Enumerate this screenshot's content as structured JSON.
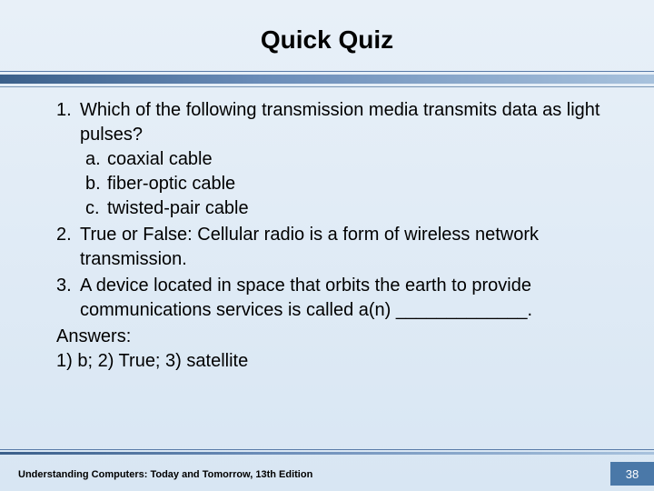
{
  "colors": {
    "background_top": "#e8f0f8",
    "background_bottom": "#d8e6f3",
    "divider_dark": "#3a5f8a",
    "divider_light": "#a8c2dd",
    "page_badge_bg": "#4a78a8",
    "text": "#000000"
  },
  "title": "Quick Quiz",
  "questions": [
    {
      "num": "1.",
      "text": "Which of the following transmission media transmits data as light pulses?",
      "options": [
        {
          "label": "a.",
          "text": "coaxial cable"
        },
        {
          "label": "b.",
          "text": "fiber-optic cable"
        },
        {
          "label": "c.",
          "text": "twisted-pair cable"
        }
      ]
    },
    {
      "num": "2.",
      "text": "True or False: Cellular radio is a form of wireless network transmission.",
      "options": []
    },
    {
      "num": "3.",
      "text": "A device located in space that orbits the earth to provide communications services is called a(n) _____________.",
      "options": []
    }
  ],
  "answers_label": "Answers:",
  "answers_line": "1) b; 2) True; 3) satellite",
  "footer": "Understanding Computers: Today and Tomorrow, 13th Edition",
  "page_number": "38"
}
